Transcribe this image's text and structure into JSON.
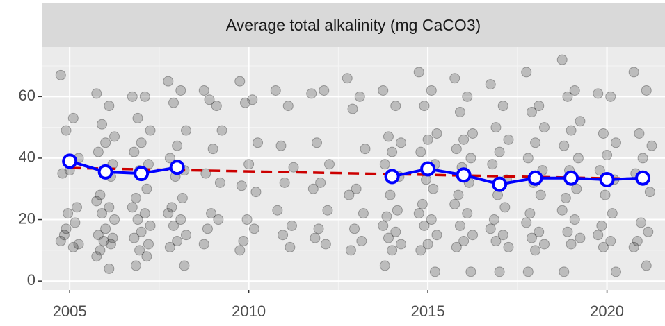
{
  "chart_data": {
    "type": "scatter",
    "title": "Average total alkalinity (mg CaCO3)",
    "xlim": [
      2004.22,
      2021.62
    ],
    "ylim": [
      -2.9,
      76.1
    ],
    "xticks": [
      2005,
      2010,
      2015,
      2020
    ],
    "yticks": [
      0,
      20,
      40,
      60
    ],
    "xticks_minor": [
      2007.5,
      2012.5,
      2017.5
    ],
    "yticks_minor": [
      10,
      30,
      50,
      70
    ],
    "grid": true,
    "series": [
      {
        "type": "scatter",
        "color": "#000000",
        "x": [
          2004.75,
          2005.1,
          2004.9,
          2005.25,
          2005,
          2004.8,
          2005.2,
          2004.95,
          2005.15,
          2004.85,
          2004.75,
          2005.1,
          2004.9,
          2005.25,
          2005.75,
          2006.1,
          2005.9,
          2006.25,
          2006,
          2005.8,
          2006.2,
          2005.95,
          2006.15,
          2005.85,
          2005.75,
          2006.1,
          2005.9,
          2006.25,
          2006,
          2005.8,
          2006.2,
          2005.95,
          2006.15,
          2005.85,
          2005.75,
          2006.1,
          2006.75,
          2007.1,
          2006.9,
          2007.25,
          2007,
          2006.8,
          2007.2,
          2006.95,
          2007.15,
          2006.85,
          2006.75,
          2007.1,
          2006.9,
          2007.25,
          2007,
          2006.8,
          2007.2,
          2006.95,
          2007.15,
          2006.85,
          2007.75,
          2008.1,
          2007.9,
          2008.25,
          2008,
          2007.8,
          2008.2,
          2007.95,
          2008.15,
          2007.85,
          2007.75,
          2008.1,
          2007.9,
          2008.25,
          2008,
          2007.8,
          2008.2,
          2008.75,
          2009.1,
          2008.9,
          2009.25,
          2009,
          2008.8,
          2009.2,
          2008.95,
          2009.15,
          2008.85,
          2008.75,
          2009.75,
          2010.1,
          2009.9,
          2010.25,
          2010,
          2009.8,
          2010.2,
          2009.95,
          2010.15,
          2009.85,
          2009.75,
          2010.75,
          2011.1,
          2010.9,
          2011.25,
          2011,
          2010.8,
          2011.2,
          2010.95,
          2011.15,
          2011.75,
          2012.1,
          2011.9,
          2012.25,
          2012,
          2011.8,
          2012.2,
          2011.95,
          2012.15,
          2011.85,
          2012.75,
          2013.1,
          2012.9,
          2013.25,
          2013,
          2012.8,
          2013.2,
          2012.95,
          2013.15,
          2012.85,
          2013.75,
          2014.1,
          2013.9,
          2014.25,
          2014,
          2013.8,
          2014.2,
          2013.95,
          2014.15,
          2013.85,
          2013.75,
          2014.1,
          2013.9,
          2014.25,
          2014,
          2013.8,
          2014.75,
          2015.1,
          2014.9,
          2015.25,
          2015,
          2014.8,
          2015.2,
          2014.95,
          2015.15,
          2014.85,
          2014.75,
          2015.1,
          2014.9,
          2015.25,
          2015,
          2014.8,
          2015.2,
          2015.75,
          2016.1,
          2015.9,
          2016.25,
          2016,
          2015.8,
          2016.2,
          2015.95,
          2016.15,
          2015.85,
          2015.75,
          2016.1,
          2015.9,
          2016.25,
          2016,
          2015.8,
          2016.2,
          2016.75,
          2017.1,
          2016.9,
          2017.25,
          2017,
          2016.8,
          2017.2,
          2016.95,
          2017.15,
          2016.85,
          2016.75,
          2017.1,
          2016.9,
          2017.25,
          2017,
          2017.75,
          2018.1,
          2017.9,
          2018.25,
          2018,
          2017.8,
          2018.2,
          2017.95,
          2018.15,
          2017.85,
          2017.75,
          2018.1,
          2017.9,
          2018.25,
          2018,
          2017.8,
          2018.75,
          2019.1,
          2018.9,
          2019.25,
          2019,
          2018.8,
          2019.2,
          2018.95,
          2019.15,
          2018.85,
          2018.75,
          2019.1,
          2018.9,
          2019.25,
          2019,
          2018.8,
          2019.75,
          2020.1,
          2019.9,
          2020.25,
          2020,
          2019.8,
          2020.2,
          2019.95,
          2020.15,
          2019.85,
          2019.75,
          2020.1,
          2019.9,
          2020.25,
          2020.75,
          2021.1,
          2020.9,
          2021.25,
          2021,
          2020.8,
          2021.2,
          2020.95,
          2021.15,
          2020.85,
          2020.75,
          2021.1
        ],
        "values": [
          67,
          53,
          49,
          40,
          36,
          35,
          24,
          22,
          19,
          15,
          13,
          11,
          17,
          12,
          61,
          57,
          51,
          47,
          45,
          42,
          38,
          36,
          34,
          28,
          26,
          24,
          22,
          20,
          17,
          15,
          14,
          13,
          12,
          10,
          8,
          4,
          60,
          60,
          53,
          49,
          45,
          42,
          38,
          36,
          30,
          27,
          24,
          22,
          20,
          18,
          16,
          14,
          12,
          10,
          8,
          5,
          65,
          62,
          58,
          49,
          44,
          40,
          36,
          34,
          27,
          24,
          22,
          20,
          18,
          15,
          13,
          11,
          5,
          62,
          57,
          59,
          49,
          43,
          35,
          32,
          22,
          20,
          17,
          12,
          65,
          59,
          58,
          45,
          38,
          31,
          29,
          20,
          17,
          13,
          10,
          62,
          57,
          44,
          37,
          32,
          23,
          18,
          15,
          11,
          61,
          62,
          45,
          38,
          32,
          30,
          23,
          17,
          12,
          14,
          66,
          60,
          56,
          43,
          30,
          28,
          22,
          17,
          13,
          10,
          62,
          57,
          47,
          45,
          42,
          38,
          34,
          28,
          23,
          21,
          18,
          16,
          14,
          12,
          10,
          5,
          68,
          62,
          57,
          48,
          46,
          42,
          38,
          33,
          30,
          25,
          22,
          20,
          18,
          15,
          12,
          10,
          3,
          66,
          60,
          55,
          48,
          46,
          43,
          40,
          37,
          32,
          28,
          25,
          22,
          18,
          15,
          13,
          11,
          3,
          64,
          57,
          50,
          46,
          42,
          38,
          33,
          28,
          24,
          20,
          17,
          15,
          13,
          11,
          3,
          68,
          57,
          55,
          50,
          45,
          40,
          36,
          32,
          28,
          22,
          19,
          16,
          14,
          12,
          10,
          3,
          72,
          62,
          60,
          52,
          49,
          44,
          40,
          36,
          30,
          27,
          23,
          20,
          16,
          14,
          12,
          3,
          61,
          60,
          48,
          45,
          41,
          36,
          33,
          28,
          22,
          18,
          15,
          13,
          11,
          3,
          68,
          62,
          48,
          44,
          40,
          35,
          29,
          19,
          16,
          13,
          11,
          5
        ]
      },
      {
        "type": "line",
        "color": "#cc0000",
        "dash": true,
        "x": [
          2005,
          2021
        ],
        "values": [
          36.8,
          33.2
        ]
      },
      {
        "type": "line",
        "color": "#0000ff",
        "markers": true,
        "x": [
          2005,
          2006,
          2007,
          2008,
          2009,
          2010,
          2011,
          2012,
          2013,
          2014,
          2015,
          2016,
          2017,
          2018,
          2019,
          2020,
          2021
        ],
        "values": [
          39,
          35.5,
          35,
          37,
          null,
          null,
          null,
          null,
          null,
          34,
          36.5,
          34.5,
          31.5,
          33.5,
          33.5,
          33,
          33.5
        ]
      }
    ]
  }
}
